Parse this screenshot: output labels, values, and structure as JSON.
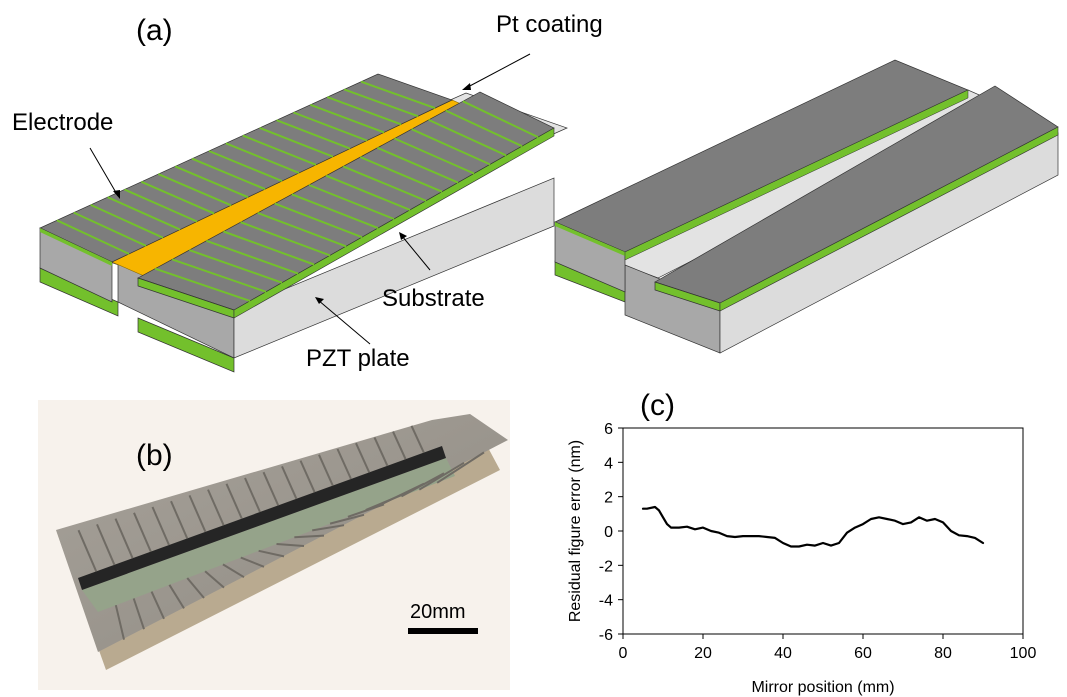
{
  "figure": {
    "panel_a": {
      "label": "(a)",
      "callouts": {
        "pt_coating": "Pt coating",
        "electrode": "Electrode",
        "substrate": "Substrate",
        "pzt_plate": "PZT plate"
      },
      "colors": {
        "electrode_top": "#7d7d7d",
        "electrode_edge": "#73c02c",
        "pt_coating": "#f7b500",
        "substrate": "#e3e3e3",
        "side": "#a8a8a8"
      }
    },
    "panel_b": {
      "label": "(b)",
      "scale_bar": "20mm"
    },
    "panel_c": {
      "label": "(c)"
    }
  },
  "chart_data": {
    "type": "line",
    "xlabel": "Mirror position (mm)",
    "ylabel": "Residual figure error (nm)",
    "xlim": [
      0,
      100
    ],
    "ylim": [
      -6,
      6
    ],
    "xticks": [
      "0",
      "20",
      "40",
      "60",
      "80",
      "100"
    ],
    "yticks": [
      "6",
      "4",
      "2",
      "0",
      "-2",
      "-4",
      "-6"
    ],
    "grid": false,
    "series": [
      {
        "color": "#000000",
        "x": [
          5,
          6,
          8,
          9,
          10,
          11,
          12,
          14,
          16,
          18,
          20,
          22,
          24,
          26,
          28,
          30,
          32,
          34,
          36,
          38,
          40,
          42,
          44,
          46,
          48,
          50,
          52,
          54,
          56,
          58,
          60,
          62,
          64,
          66,
          68,
          70,
          72,
          74,
          76,
          78,
          80,
          82,
          84,
          86,
          88,
          90
        ],
        "y": [
          1.3,
          1.3,
          1.4,
          1.2,
          0.8,
          0.4,
          0.2,
          0.2,
          0.25,
          0.1,
          0.2,
          0.0,
          -0.1,
          -0.3,
          -0.35,
          -0.3,
          -0.3,
          -0.3,
          -0.35,
          -0.4,
          -0.7,
          -0.9,
          -0.9,
          -0.8,
          -0.85,
          -0.7,
          -0.85,
          -0.7,
          -0.1,
          0.2,
          0.4,
          0.7,
          0.8,
          0.7,
          0.6,
          0.4,
          0.5,
          0.8,
          0.6,
          0.7,
          0.5,
          0.0,
          -0.25,
          -0.3,
          -0.4,
          -0.7
        ]
      }
    ]
  }
}
